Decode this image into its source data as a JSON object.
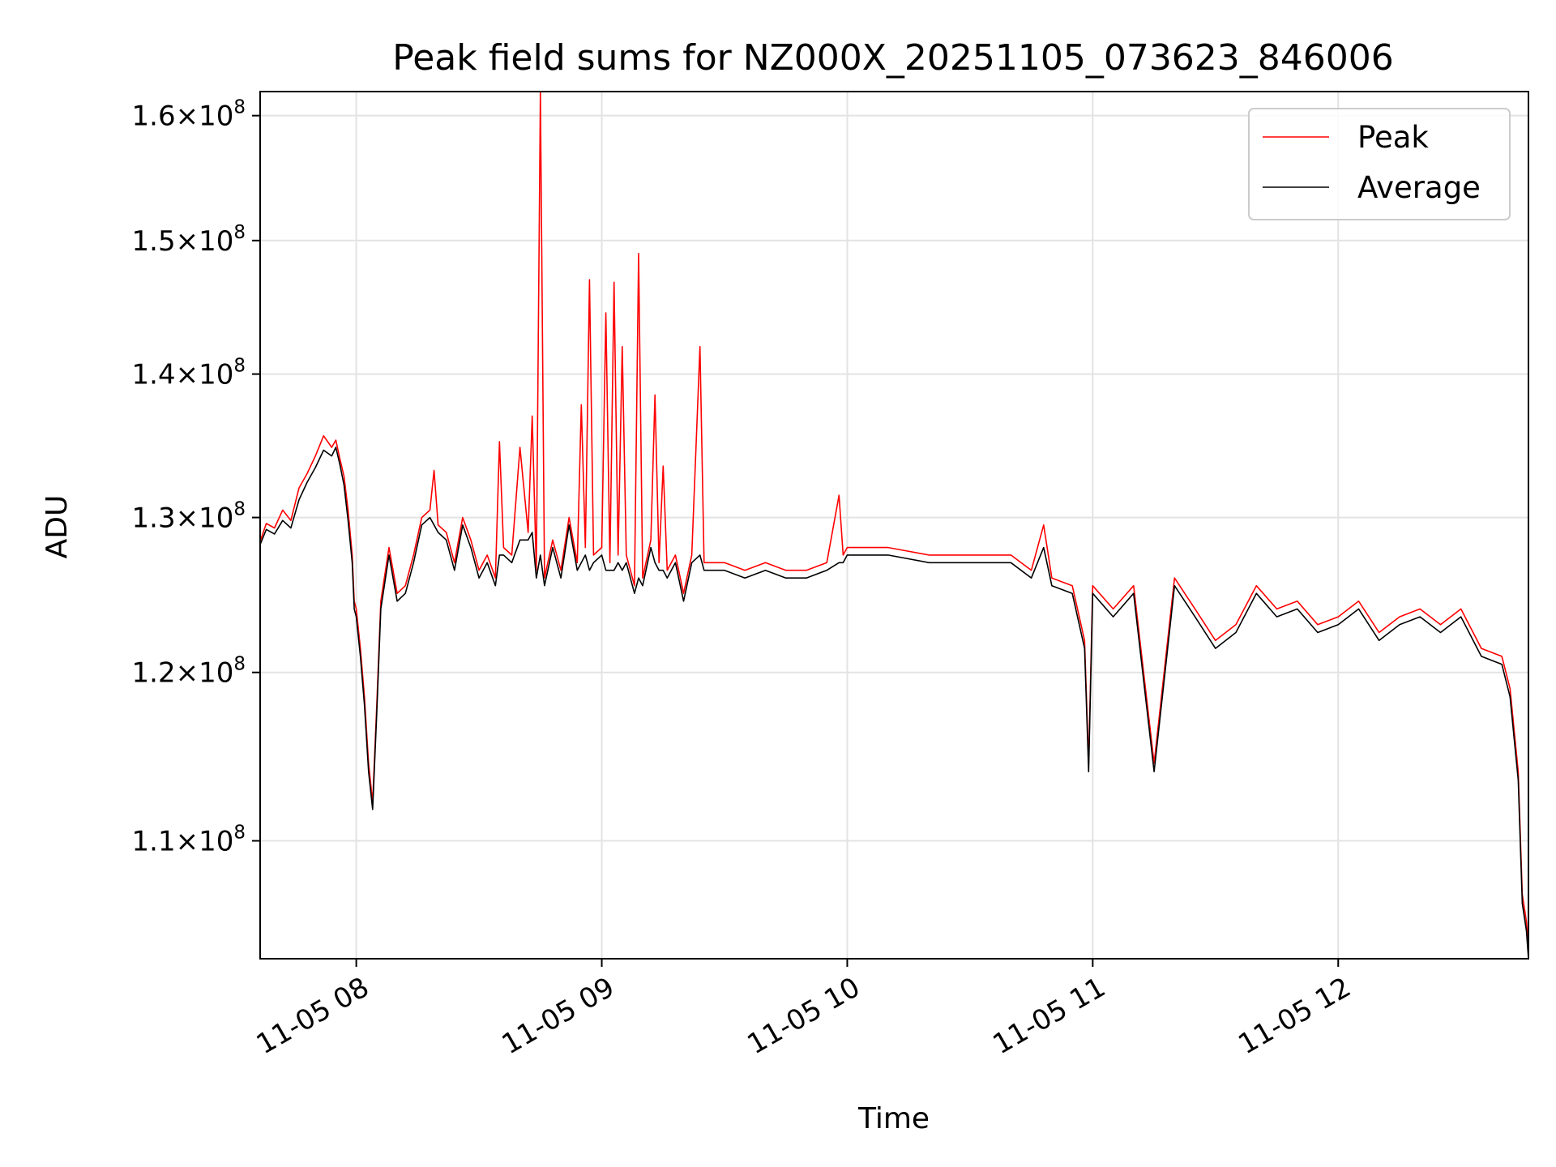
{
  "chart_data": {
    "type": "line",
    "title": "Peak field sums for NZ000X_20251105_073623_846006",
    "xlabel": "Time",
    "ylabel": "ADU",
    "yscale": "log",
    "ylim": [
      103500000,
      162000000
    ],
    "xlim": [
      "11-05 07:36:30",
      "12:46:30"
    ],
    "grid": true,
    "legend_position": "top-right",
    "x_ticks": [
      {
        "label": "11-05 08",
        "value": "08:00"
      },
      {
        "label": "11-05 09",
        "value": "09:00"
      },
      {
        "label": "11-05 10",
        "value": "10:00"
      },
      {
        "label": "11-05 11",
        "value": "11:00"
      },
      {
        "label": "11-05 12",
        "value": "12:00"
      }
    ],
    "y_ticks": [
      {
        "mantissa": "1.1",
        "base": "10",
        "exp": "8",
        "value": 110000000
      },
      {
        "mantissa": "1.2",
        "base": "10",
        "exp": "8",
        "value": 120000000
      },
      {
        "mantissa": "1.3",
        "base": "10",
        "exp": "8",
        "value": 130000000
      },
      {
        "mantissa": "1.4",
        "base": "10",
        "exp": "8",
        "value": 140000000
      },
      {
        "mantissa": "1.5",
        "base": "10",
        "exp": "8",
        "value": 150000000
      },
      {
        "mantissa": "1.6",
        "base": "10",
        "exp": "8",
        "value": 160000000
      }
    ],
    "series": [
      {
        "name": "Peak",
        "color": "#ff0000",
        "points": [
          [
            "07:36:30",
            128.4
          ],
          [
            "07:38",
            129.6
          ],
          [
            "07:40",
            129.3
          ],
          [
            "07:42",
            130.5
          ],
          [
            "07:44",
            129.8
          ],
          [
            "07:46",
            132.0
          ],
          [
            "07:48",
            133.0
          ],
          [
            "07:50",
            134.2
          ],
          [
            "07:52",
            135.6
          ],
          [
            "07:54",
            134.8
          ],
          [
            "07:55",
            135.3
          ],
          [
            "07:56",
            134.0
          ],
          [
            "07:57",
            132.8
          ],
          [
            "07:58",
            130.5
          ],
          [
            "07:59",
            127.5
          ],
          [
            "07:59:30",
            124.5
          ],
          [
            "08:00",
            124.0
          ],
          [
            "08:01",
            121.5
          ],
          [
            "08:02",
            118.5
          ],
          [
            "08:03",
            114.5
          ],
          [
            "08:04",
            112.2
          ],
          [
            "08:05",
            118.0
          ],
          [
            "08:06",
            124.5
          ],
          [
            "08:08",
            128.0
          ],
          [
            "08:10",
            125.0
          ],
          [
            "08:12",
            125.5
          ],
          [
            "08:14",
            127.5
          ],
          [
            "08:16",
            130.0
          ],
          [
            "08:18",
            130.5
          ],
          [
            "08:19",
            133.2
          ],
          [
            "08:20",
            129.5
          ],
          [
            "08:22",
            129.0
          ],
          [
            "08:24",
            127.0
          ],
          [
            "08:26",
            130.0
          ],
          [
            "08:28",
            128.5
          ],
          [
            "08:30",
            126.5
          ],
          [
            "08:32",
            127.5
          ],
          [
            "08:34",
            126.0
          ],
          [
            "08:35",
            135.2
          ],
          [
            "08:36",
            128.0
          ],
          [
            "08:38",
            127.5
          ],
          [
            "08:40",
            134.8
          ],
          [
            "08:42",
            129.0
          ],
          [
            "08:43",
            137.0
          ],
          [
            "08:44",
            126.5
          ],
          [
            "08:45",
            162.0
          ],
          [
            "08:46",
            126.0
          ],
          [
            "08:48",
            128.5
          ],
          [
            "08:50",
            126.5
          ],
          [
            "08:52",
            130.0
          ],
          [
            "08:54",
            127.0
          ],
          [
            "08:55",
            137.8
          ],
          [
            "08:56",
            128.0
          ],
          [
            "08:57",
            147.0
          ],
          [
            "08:58",
            127.5
          ],
          [
            "09:00",
            128.0
          ],
          [
            "09:01",
            144.5
          ],
          [
            "09:02",
            127.0
          ],
          [
            "09:03",
            146.8
          ],
          [
            "09:04",
            127.5
          ],
          [
            "09:05",
            142.0
          ],
          [
            "09:06",
            127.5
          ],
          [
            "09:08",
            125.5
          ],
          [
            "09:09",
            149.0
          ],
          [
            "09:10",
            126.0
          ],
          [
            "09:12",
            128.5
          ],
          [
            "09:13",
            138.5
          ],
          [
            "09:14",
            127.0
          ],
          [
            "09:15",
            133.5
          ],
          [
            "09:16",
            126.5
          ],
          [
            "09:18",
            127.5
          ],
          [
            "09:20",
            125.0
          ],
          [
            "09:22",
            127.5
          ],
          [
            "09:24",
            142.0
          ],
          [
            "09:25",
            127.0
          ],
          [
            "09:30",
            127.0
          ],
          [
            "09:35",
            126.5
          ],
          [
            "09:40",
            127.0
          ],
          [
            "09:45",
            126.5
          ],
          [
            "09:50",
            126.5
          ],
          [
            "09:55",
            127.0
          ],
          [
            "09:58",
            131.5
          ],
          [
            "09:59",
            127.5
          ],
          [
            "10:00",
            128.0
          ],
          [
            "10:10",
            128.0
          ],
          [
            "10:20",
            127.5
          ],
          [
            "10:30",
            127.5
          ],
          [
            "10:40",
            127.5
          ],
          [
            "10:45",
            126.5
          ],
          [
            "10:48",
            129.5
          ],
          [
            "10:50",
            126.0
          ],
          [
            "10:55",
            125.5
          ],
          [
            "10:58",
            122.0
          ],
          [
            "10:59",
            114.5
          ],
          [
            "11:00",
            125.5
          ],
          [
            "11:05",
            124.0
          ],
          [
            "11:10",
            125.5
          ],
          [
            "11:15",
            114.5
          ],
          [
            "11:20",
            126.0
          ],
          [
            "11:25",
            124.0
          ],
          [
            "11:30",
            122.0
          ],
          [
            "11:35",
            123.0
          ],
          [
            "11:40",
            125.5
          ],
          [
            "11:45",
            124.0
          ],
          [
            "11:50",
            124.5
          ],
          [
            "11:55",
            123.0
          ],
          [
            "12:00",
            123.5
          ],
          [
            "12:05",
            124.5
          ],
          [
            "12:10",
            122.5
          ],
          [
            "12:15",
            123.5
          ],
          [
            "12:20",
            124.0
          ],
          [
            "12:25",
            123.0
          ],
          [
            "12:30",
            124.0
          ],
          [
            "12:35",
            121.5
          ],
          [
            "12:40",
            121.0
          ],
          [
            "12:42",
            119.0
          ],
          [
            "12:44",
            114.0
          ],
          [
            "12:45",
            107.0
          ],
          [
            "12:46",
            105.5
          ],
          [
            "12:46:30",
            104.0
          ]
        ]
      },
      {
        "name": "Average",
        "color": "#000000",
        "points": [
          [
            "07:36:30",
            128.2
          ],
          [
            "07:38",
            129.2
          ],
          [
            "07:40",
            128.9
          ],
          [
            "07:42",
            129.8
          ],
          [
            "07:44",
            129.3
          ],
          [
            "07:46",
            131.2
          ],
          [
            "07:48",
            132.4
          ],
          [
            "07:50",
            133.4
          ],
          [
            "07:52",
            134.6
          ],
          [
            "07:54",
            134.2
          ],
          [
            "07:55",
            134.8
          ],
          [
            "07:56",
            133.6
          ],
          [
            "07:57",
            132.2
          ],
          [
            "07:58",
            129.8
          ],
          [
            "07:59",
            127.0
          ],
          [
            "07:59:30",
            124.0
          ],
          [
            "08:00",
            123.5
          ],
          [
            "08:01",
            121.0
          ],
          [
            "08:02",
            118.0
          ],
          [
            "08:03",
            114.0
          ],
          [
            "08:04",
            111.8
          ],
          [
            "08:05",
            117.5
          ],
          [
            "08:06",
            124.0
          ],
          [
            "08:08",
            127.5
          ],
          [
            "08:10",
            124.5
          ],
          [
            "08:12",
            125.0
          ],
          [
            "08:14",
            127.0
          ],
          [
            "08:16",
            129.5
          ],
          [
            "08:18",
            130.0
          ],
          [
            "08:19",
            129.5
          ],
          [
            "08:20",
            129.0
          ],
          [
            "08:22",
            128.5
          ],
          [
            "08:24",
            126.5
          ],
          [
            "08:26",
            129.5
          ],
          [
            "08:28",
            128.0
          ],
          [
            "08:30",
            126.0
          ],
          [
            "08:32",
            127.0
          ],
          [
            "08:34",
            125.5
          ],
          [
            "08:35",
            127.5
          ],
          [
            "08:36",
            127.5
          ],
          [
            "08:38",
            127.0
          ],
          [
            "08:40",
            128.5
          ],
          [
            "08:42",
            128.5
          ],
          [
            "08:43",
            129.0
          ],
          [
            "08:44",
            126.0
          ],
          [
            "08:45",
            127.5
          ],
          [
            "08:46",
            125.5
          ],
          [
            "08:48",
            128.0
          ],
          [
            "08:50",
            126.0
          ],
          [
            "08:52",
            129.5
          ],
          [
            "08:54",
            126.5
          ],
          [
            "08:55",
            127.0
          ],
          [
            "08:56",
            127.5
          ],
          [
            "08:57",
            126.5
          ],
          [
            "08:58",
            127.0
          ],
          [
            "09:00",
            127.5
          ],
          [
            "09:01",
            126.5
          ],
          [
            "09:02",
            126.5
          ],
          [
            "09:03",
            126.5
          ],
          [
            "09:04",
            127.0
          ],
          [
            "09:05",
            126.5
          ],
          [
            "09:06",
            127.0
          ],
          [
            "09:08",
            125.0
          ],
          [
            "09:09",
            126.0
          ],
          [
            "09:10",
            125.5
          ],
          [
            "09:12",
            128.0
          ],
          [
            "09:13",
            127.0
          ],
          [
            "09:14",
            126.5
          ],
          [
            "09:15",
            126.5
          ],
          [
            "09:16",
            126.0
          ],
          [
            "09:18",
            127.0
          ],
          [
            "09:20",
            124.5
          ],
          [
            "09:22",
            127.0
          ],
          [
            "09:24",
            127.5
          ],
          [
            "09:25",
            126.5
          ],
          [
            "09:30",
            126.5
          ],
          [
            "09:35",
            126.0
          ],
          [
            "09:40",
            126.5
          ],
          [
            "09:45",
            126.0
          ],
          [
            "09:50",
            126.0
          ],
          [
            "09:55",
            126.5
          ],
          [
            "09:58",
            127.0
          ],
          [
            "09:59",
            127.0
          ],
          [
            "10:00",
            127.5
          ],
          [
            "10:10",
            127.5
          ],
          [
            "10:20",
            127.0
          ],
          [
            "10:30",
            127.0
          ],
          [
            "10:40",
            127.0
          ],
          [
            "10:45",
            126.0
          ],
          [
            "10:48",
            128.0
          ],
          [
            "10:50",
            125.5
          ],
          [
            "10:55",
            125.0
          ],
          [
            "10:58",
            121.5
          ],
          [
            "10:59",
            114.0
          ],
          [
            "11:00",
            125.0
          ],
          [
            "11:05",
            123.5
          ],
          [
            "11:10",
            125.0
          ],
          [
            "11:15",
            114.0
          ],
          [
            "11:20",
            125.5
          ],
          [
            "11:25",
            123.5
          ],
          [
            "11:30",
            121.5
          ],
          [
            "11:35",
            122.5
          ],
          [
            "11:40",
            125.0
          ],
          [
            "11:45",
            123.5
          ],
          [
            "11:50",
            124.0
          ],
          [
            "11:55",
            122.5
          ],
          [
            "12:00",
            123.0
          ],
          [
            "12:05",
            124.0
          ],
          [
            "12:10",
            122.0
          ],
          [
            "12:15",
            123.0
          ],
          [
            "12:20",
            123.5
          ],
          [
            "12:25",
            122.5
          ],
          [
            "12:30",
            123.5
          ],
          [
            "12:35",
            121.0
          ],
          [
            "12:40",
            120.5
          ],
          [
            "12:42",
            118.5
          ],
          [
            "12:44",
            113.5
          ],
          [
            "12:45",
            106.5
          ],
          [
            "12:46",
            105.0
          ],
          [
            "12:46:30",
            103.5
          ]
        ]
      }
    ]
  }
}
